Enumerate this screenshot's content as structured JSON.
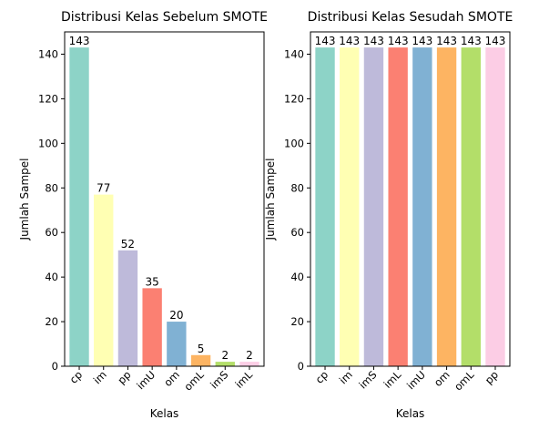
{
  "chart_data": [
    {
      "type": "bar",
      "title": "Distribusi Kelas Sebelum SMOTE",
      "xlabel": "Kelas",
      "ylabel": "Jumlah Sampel",
      "categories": [
        "cp",
        "im",
        "pp",
        "imU",
        "om",
        "omL",
        "imS",
        "imL"
      ],
      "values": [
        143,
        77,
        52,
        35,
        20,
        5,
        2,
        2
      ],
      "data_labels": [
        "143",
        "77",
        "52",
        "35",
        "20",
        "5",
        "2",
        "2"
      ],
      "colors": [
        "#8dd3c7",
        "#ffffb3",
        "#bebada",
        "#fb8072",
        "#80b1d3",
        "#fdb462",
        "#b3de69",
        "#fccde5"
      ],
      "ylim": [
        0,
        150
      ],
      "yticks": [
        0,
        20,
        40,
        60,
        80,
        100,
        120,
        140
      ],
      "ytick_labels": [
        "0",
        "20",
        "40",
        "60",
        "80",
        "100",
        "120",
        "140"
      ],
      "grid": false,
      "tick_rotation_deg": 45
    },
    {
      "type": "bar",
      "title": "Distribusi Kelas Sesudah SMOTE",
      "xlabel": "Kelas",
      "ylabel": "Jumlah Sampel",
      "categories": [
        "cp",
        "im",
        "imS",
        "imL",
        "imU",
        "om",
        "omL",
        "pp"
      ],
      "values": [
        143,
        143,
        143,
        143,
        143,
        143,
        143,
        143
      ],
      "data_labels": [
        "143",
        "143",
        "143",
        "143",
        "143",
        "143",
        "143",
        "143"
      ],
      "colors": [
        "#8dd3c7",
        "#ffffb3",
        "#bebada",
        "#fb8072",
        "#80b1d3",
        "#fdb462",
        "#b3de69",
        "#fccde5"
      ],
      "ylim": [
        0,
        150
      ],
      "yticks": [
        0,
        20,
        40,
        60,
        80,
        100,
        120,
        140
      ],
      "ytick_labels": [
        "0",
        "20",
        "40",
        "60",
        "80",
        "100",
        "120",
        "140"
      ],
      "grid": false,
      "tick_rotation_deg": 45
    }
  ]
}
